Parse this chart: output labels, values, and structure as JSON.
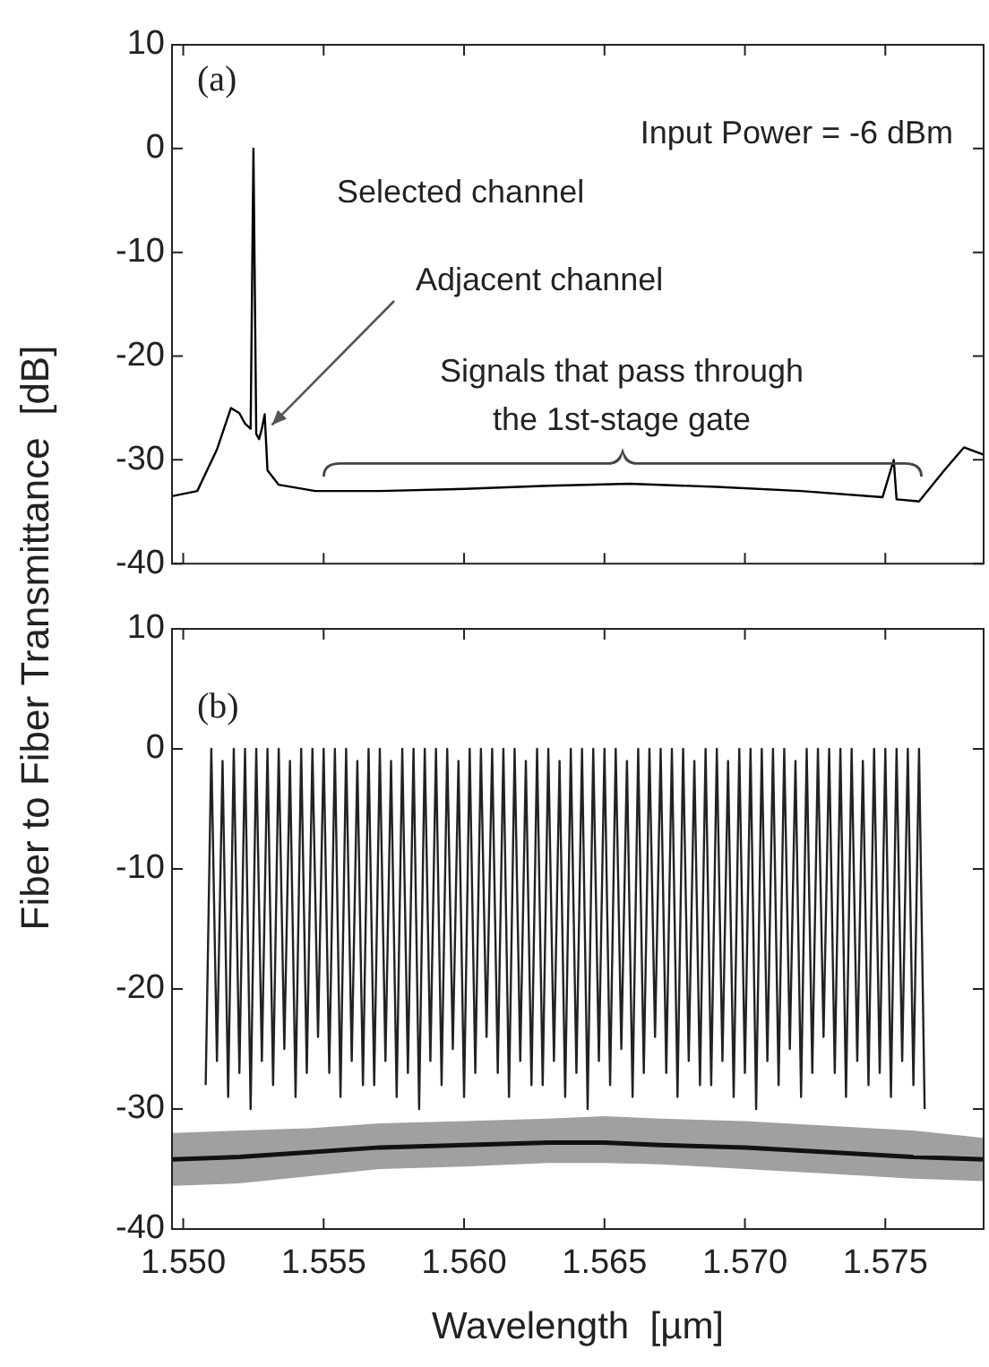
{
  "chart_data": [
    {
      "type": "line",
      "annotations": [
        "(a)",
        "Input Power = -6 dBm",
        "Selected channel",
        {
          "text": "Adjacent channel",
          "x": 1.5529,
          "y": -25.6
        },
        "Signals that pass through\nthe 1st-stage gate"
      ],
      "x": [
        1.5496,
        1.5505,
        1.5512,
        1.5517,
        1.552,
        1.5522,
        1.5524,
        1.5525,
        1.5526,
        1.5527,
        1.5528,
        1.5529,
        1.553,
        1.5534,
        1.5547,
        1.557,
        1.56,
        1.563,
        1.5659,
        1.569,
        1.572,
        1.5749,
        1.5753,
        1.5754,
        1.5762,
        1.5771,
        1.5778,
        1.5785
      ],
      "series": [
        {
          "color": "#000000",
          "values": [
            -33.5,
            -33,
            -29,
            -25,
            -25.5,
            -26.5,
            -27,
            0,
            -27.5,
            -28,
            -27,
            -25.6,
            -31,
            -32.4,
            -33,
            -33,
            -32.8,
            -32.5,
            -32.3,
            -32.6,
            -33,
            -33.6,
            -30,
            -33.8,
            -34,
            -31,
            -28.8,
            -29.5
          ]
        }
      ],
      "xlim": [
        1.5496,
        1.5785
      ],
      "xticks": [
        {
          "value": 1.55,
          "label": null
        },
        {
          "value": 1.555,
          "label": null
        },
        {
          "value": 1.56,
          "label": null
        },
        {
          "value": 1.565,
          "label": null
        },
        {
          "value": 1.57,
          "label": null
        },
        {
          "value": 1.575,
          "label": null
        }
      ],
      "ylim": [
        -40,
        10
      ],
      "yticks": [
        -40,
        -30,
        -20,
        -10,
        0,
        10
      ],
      "tick_labels": "y",
      "grid": false,
      "legend": false
    },
    {
      "type": "line",
      "xlabel": "Wavelength  [µm]",
      "ylabel": "Fiber to Fiber Transmittance  [dB]",
      "annotations": [
        "(b)"
      ],
      "series": [
        {
          "color": "#222222",
          "x": [
            1.5508,
            1.551,
            1.5512,
            1.5514,
            1.5516,
            1.5518,
            1.552,
            1.5522,
            1.5524,
            1.5526,
            1.5528,
            1.553,
            1.5532,
            1.5534,
            1.5536,
            1.5538,
            1.554,
            1.5542,
            1.5544,
            1.5546,
            1.5548,
            1.555,
            1.5552,
            1.5554,
            1.5556,
            1.5558,
            1.556,
            1.5562,
            1.5564,
            1.5566,
            1.5568,
            1.557,
            1.5572,
            1.5574,
            1.5576,
            1.5578,
            1.558,
            1.5582,
            1.5584,
            1.5586,
            1.5588,
            1.559,
            1.5592,
            1.5594,
            1.5596,
            1.5598,
            1.56,
            1.5602,
            1.5604,
            1.5606,
            1.5608,
            1.561,
            1.5612,
            1.5614,
            1.5616,
            1.5618,
            1.562,
            1.5622,
            1.5624,
            1.5626,
            1.5628,
            1.563,
            1.5632,
            1.5634,
            1.5636,
            1.5638,
            1.564,
            1.5642,
            1.5644,
            1.5646,
            1.5648,
            1.565,
            1.5652,
            1.5654,
            1.5656,
            1.5658,
            1.566,
            1.5662,
            1.5664,
            1.5666,
            1.5668,
            1.567,
            1.5672,
            1.5674,
            1.5676,
            1.5678,
            1.568,
            1.5682,
            1.5684,
            1.5686,
            1.5688,
            1.569,
            1.5692,
            1.5694,
            1.5696,
            1.5698,
            1.57,
            1.5702,
            1.5704,
            1.5706,
            1.5708,
            1.571,
            1.5712,
            1.5714,
            1.5716,
            1.5718,
            1.572,
            1.5722,
            1.5724,
            1.5726,
            1.5728,
            1.573,
            1.5732,
            1.5734,
            1.5736,
            1.5738,
            1.574,
            1.5742,
            1.5744,
            1.5746,
            1.5748,
            1.575,
            1.5752,
            1.5754,
            1.5756,
            1.5758,
            1.576,
            1.5762,
            1.5764
          ],
          "values": [
            -28,
            0,
            -26,
            -1,
            -29,
            0,
            -27,
            0,
            -30,
            0,
            -26,
            0,
            -28,
            0,
            -25,
            -1,
            -29,
            0,
            -27,
            0,
            -24,
            0,
            -27,
            0,
            -29,
            0,
            -26,
            -1,
            -28,
            0,
            -28,
            0,
            -26,
            -1,
            -29,
            0,
            -27,
            0,
            -30,
            0,
            -26,
            0,
            -28,
            0,
            -25,
            -1,
            -29,
            0,
            -27,
            0,
            -24,
            0,
            -27,
            0,
            -29,
            0,
            -26,
            -1,
            -28,
            0,
            -28,
            0,
            -26,
            -1,
            -29,
            0,
            -27,
            0,
            -30,
            0,
            -26,
            0,
            -28,
            0,
            -25,
            -1,
            -29,
            0,
            -27,
            0,
            -24,
            0,
            -27,
            0,
            -29,
            0,
            -26,
            -1,
            -28,
            0,
            -28,
            0,
            -26,
            -1,
            -29,
            0,
            -27,
            0,
            -30,
            0,
            -26,
            0,
            -28,
            0,
            -25,
            -1,
            -29,
            0,
            -27,
            0,
            -24,
            0,
            -27,
            0,
            -29,
            0,
            -26,
            -1,
            -28,
            0,
            -27,
            0,
            -29,
            0,
            -26,
            0,
            -28,
            0,
            -30
          ]
        },
        {
          "color": "#111111",
          "x": [
            1.5496,
            1.552,
            1.5545,
            1.557,
            1.56,
            1.563,
            1.565,
            1.567,
            1.57,
            1.573,
            1.576,
            1.5785
          ],
          "values": [
            -34.2,
            -34,
            -33.6,
            -33.2,
            -33,
            -32.8,
            -32.8,
            -33,
            -33.2,
            -33.6,
            -34,
            -34.2
          ],
          "lower": [
            -36.4,
            -36.2,
            -35.6,
            -35,
            -34.8,
            -34.5,
            -34.5,
            -34.6,
            -35,
            -35.4,
            -35.8,
            -36
          ],
          "upper": [
            -32,
            -31.8,
            -31.6,
            -31.2,
            -31,
            -30.8,
            -30.6,
            -30.8,
            -31,
            -31.4,
            -31.8,
            -32.4
          ]
        }
      ],
      "xlim": [
        1.5496,
        1.5785
      ],
      "xticks": [
        {
          "value": 1.55,
          "label": "1.550"
        },
        {
          "value": 1.555,
          "label": "1.555"
        },
        {
          "value": 1.56,
          "label": "1.560"
        },
        {
          "value": 1.565,
          "label": "1.565"
        },
        {
          "value": 1.57,
          "label": "1.570"
        },
        {
          "value": 1.575,
          "label": "1.575"
        }
      ],
      "ylim": [
        -40,
        10
      ],
      "yticks": [
        -40,
        -30,
        -20,
        -10,
        0,
        10
      ],
      "grid": false,
      "legend": false
    }
  ]
}
